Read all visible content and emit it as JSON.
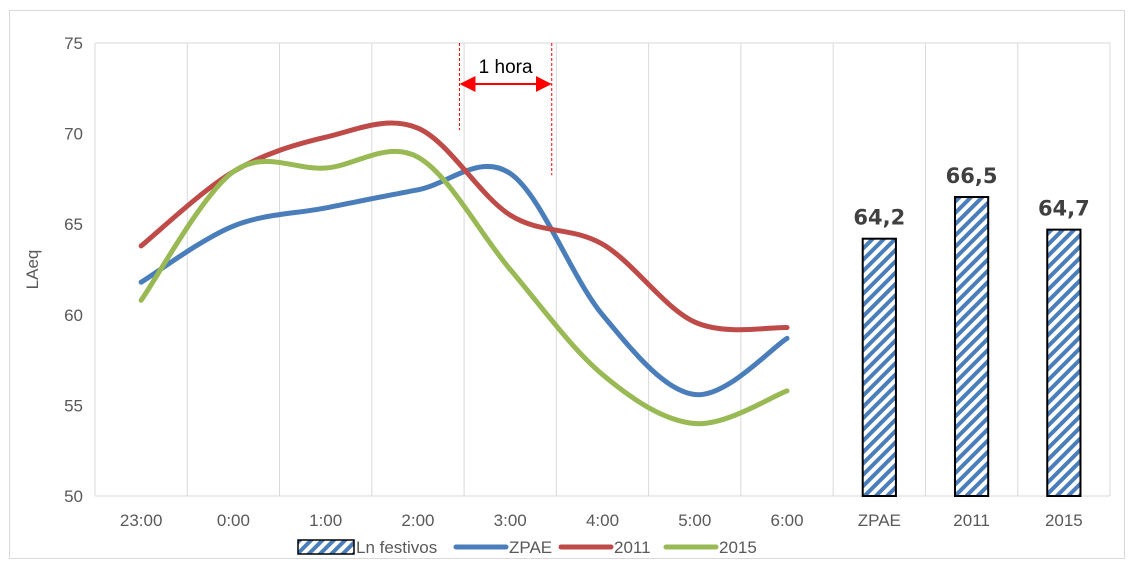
{
  "chart_data": {
    "type": "line",
    "ylabel": "LAeq",
    "ylim": [
      50,
      75
    ],
    "yticks": [
      50,
      55,
      60,
      65,
      70,
      75
    ],
    "grid": "vertical",
    "categories": [
      "23:00",
      "0:00",
      "1:00",
      "2:00",
      "3:00",
      "4:00",
      "5:00",
      "6:00",
      "ZPAE",
      "2011",
      "2015"
    ],
    "series": [
      {
        "name": "ZPAE",
        "color": "#4a7ebb",
        "kind": "line",
        "x": [
          "23:00",
          "0:00",
          "1:00",
          "2:00",
          "3:00",
          "4:00",
          "5:00",
          "6:00"
        ],
        "values": [
          61.8,
          64.9,
          65.9,
          66.9,
          67.8,
          60.0,
          55.6,
          58.7
        ]
      },
      {
        "name": "2011",
        "color": "#be4b48",
        "kind": "line",
        "x": [
          "23:00",
          "0:00",
          "1:00",
          "2:00",
          "3:00",
          "4:00",
          "5:00",
          "6:00"
        ],
        "values": [
          63.8,
          67.9,
          69.8,
          70.3,
          65.5,
          63.9,
          59.6,
          59.3
        ]
      },
      {
        "name": "2015",
        "color": "#98b954",
        "kind": "line",
        "x": [
          "23:00",
          "0:00",
          "1:00",
          "2:00",
          "3:00",
          "4:00",
          "5:00",
          "6:00"
        ],
        "values": [
          60.8,
          67.9,
          68.1,
          68.7,
          62.5,
          56.7,
          54.0,
          55.8
        ]
      },
      {
        "name": "Ln festivos",
        "kind": "bar",
        "pattern": "diagonal-stripes",
        "stripe_color": "#4a7ebb",
        "x": [
          "ZPAE",
          "2011",
          "2015"
        ],
        "values": [
          64.2,
          66.5,
          64.7
        ],
        "labels": [
          "64,2",
          "66,5",
          "64,7"
        ]
      }
    ],
    "annotations": [
      {
        "text": "1 hora",
        "from": "2:00",
        "to": "3:00",
        "arrow_color": "#ff0000"
      }
    ],
    "legend": {
      "position": "bottom",
      "items": [
        "Ln festivos",
        "ZPAE",
        "2011",
        "2015"
      ]
    }
  }
}
